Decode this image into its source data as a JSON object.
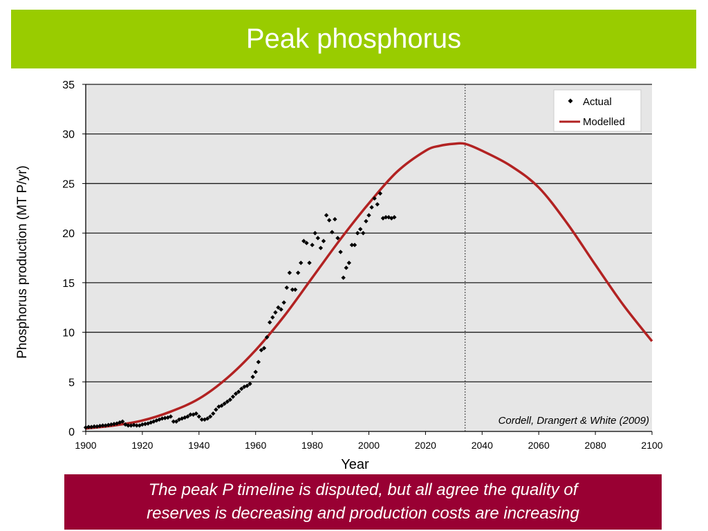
{
  "slide": {
    "title": "Peak phosphorus",
    "caption_lines": [
      "The peak P timeline is disputed, but all agree the quality of",
      "reserves is decreasing and production costs are increasing"
    ]
  },
  "colors": {
    "title_bar": "#99cc00",
    "caption_box": "#990033",
    "plot_bg": "#e6e6e6",
    "model_line": "#b22222",
    "actual_points": "#000000"
  },
  "chart_data": {
    "type": "line",
    "xlabel": "Year",
    "ylabel": "Phosphorus production (MT P/yr)",
    "xlim": [
      1900,
      2100
    ],
    "ylim": [
      0,
      35
    ],
    "xticks": [
      1900,
      1920,
      1940,
      1960,
      1980,
      2000,
      2020,
      2040,
      2060,
      2080,
      2100
    ],
    "yticks": [
      0,
      5,
      10,
      15,
      20,
      25,
      30,
      35
    ],
    "grid": "horizontal",
    "legend_position": "top-right",
    "peak_marker_year": 2034,
    "annotation": "Cordell, Drangert & White (2009)",
    "series": [
      {
        "name": "Actual",
        "kind": "scatter",
        "x": [
          1900,
          1901,
          1902,
          1903,
          1904,
          1905,
          1906,
          1907,
          1908,
          1909,
          1910,
          1911,
          1912,
          1913,
          1914,
          1915,
          1916,
          1917,
          1918,
          1919,
          1920,
          1921,
          1922,
          1923,
          1924,
          1925,
          1926,
          1927,
          1928,
          1929,
          1930,
          1931,
          1932,
          1933,
          1934,
          1935,
          1936,
          1937,
          1938,
          1939,
          1940,
          1941,
          1942,
          1943,
          1944,
          1945,
          1946,
          1947,
          1948,
          1949,
          1950,
          1951,
          1952,
          1953,
          1954,
          1955,
          1956,
          1957,
          1958,
          1959,
          1960,
          1961,
          1962,
          1963,
          1964,
          1965,
          1966,
          1967,
          1968,
          1969,
          1970,
          1971,
          1972,
          1973,
          1974,
          1975,
          1976,
          1977,
          1978,
          1979,
          1980,
          1981,
          1982,
          1983,
          1984,
          1985,
          1986,
          1987,
          1988,
          1989,
          1990,
          1991,
          1992,
          1993,
          1994,
          1995,
          1996,
          1997,
          1998,
          1999,
          2000,
          2001,
          2002,
          2003,
          2004,
          2005,
          2006,
          2007,
          2008,
          2009
        ],
        "values": [
          0.4,
          0.45,
          0.45,
          0.5,
          0.5,
          0.55,
          0.6,
          0.6,
          0.65,
          0.7,
          0.75,
          0.8,
          0.9,
          1.0,
          0.7,
          0.6,
          0.6,
          0.65,
          0.6,
          0.6,
          0.7,
          0.75,
          0.8,
          0.9,
          1.0,
          1.1,
          1.2,
          1.3,
          1.35,
          1.4,
          1.5,
          1.0,
          1.0,
          1.2,
          1.3,
          1.4,
          1.5,
          1.7,
          1.7,
          1.8,
          1.5,
          1.2,
          1.2,
          1.3,
          1.5,
          1.8,
          2.2,
          2.5,
          2.6,
          2.8,
          3.0,
          3.2,
          3.5,
          3.8,
          4.0,
          4.3,
          4.5,
          4.6,
          4.8,
          5.5,
          6.0,
          7.0,
          8.2,
          8.4,
          9.5,
          11.0,
          11.5,
          12.0,
          12.5,
          12.3,
          13.0,
          14.5,
          16.0,
          14.3,
          14.3,
          16.0,
          17.0,
          19.2,
          19.0,
          17.0,
          18.8,
          20.0,
          19.5,
          18.5,
          19.2,
          21.8,
          21.3,
          20.1,
          21.4,
          19.5,
          18.1,
          15.5,
          16.5,
          17.0,
          18.8,
          18.8,
          20.0,
          20.4,
          20.0,
          21.2,
          21.8,
          22.6,
          23.5,
          22.9,
          24.0,
          21.5,
          21.6,
          21.6,
          21.5,
          21.6
        ]
      },
      {
        "name": "Modelled",
        "kind": "line",
        "x": [
          1900,
          1910,
          1920,
          1930,
          1940,
          1950,
          1960,
          1970,
          1980,
          1990,
          2000,
          2010,
          2020,
          2025,
          2030,
          2034,
          2040,
          2050,
          2060,
          2070,
          2080,
          2090,
          2100
        ],
        "values": [
          0.3,
          0.6,
          1.1,
          2.0,
          3.3,
          5.4,
          8.2,
          11.6,
          15.5,
          19.4,
          23.0,
          26.2,
          28.3,
          28.8,
          29.0,
          29.0,
          28.3,
          26.8,
          24.6,
          21.0,
          16.8,
          12.7,
          9.1
        ]
      }
    ]
  }
}
